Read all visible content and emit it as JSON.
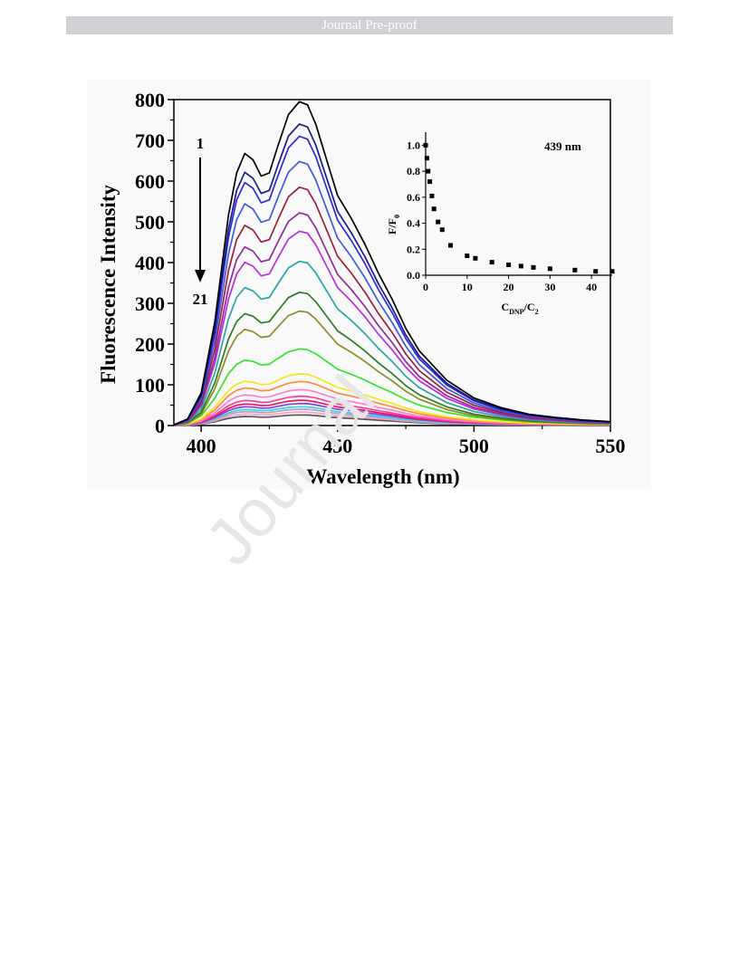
{
  "header": {
    "text": "Journal Pre-proof"
  },
  "watermark": {
    "text": "Journal"
  },
  "chart_data": [
    {
      "type": "line",
      "title": "",
      "xlabel": "Wavelength (nm)",
      "ylabel": "Fluorescence Intensity",
      "xlim": [
        390,
        550
      ],
      "ylim": [
        0,
        800
      ],
      "xticks": [
        400,
        450,
        500,
        550
      ],
      "yticks": [
        0,
        100,
        200,
        300,
        400,
        500,
        600,
        700,
        800
      ],
      "grid": false,
      "annotation": {
        "start_label": "1",
        "end_label": "21",
        "arrow": "down"
      },
      "shape_x": [
        390,
        395,
        400,
        405,
        410,
        413,
        416,
        419,
        422,
        425,
        428,
        432,
        436,
        439,
        442,
        446,
        450,
        455,
        460,
        465,
        470,
        475,
        480,
        490,
        500,
        510,
        520,
        530,
        540,
        550
      ],
      "series": [
        {
          "peak": 795,
          "color": "#000000"
        },
        {
          "peak": 740,
          "color": "#1a1a8c"
        },
        {
          "peak": 710,
          "color": "#2a2ad6"
        },
        {
          "peak": 648,
          "color": "#3d5ae0"
        },
        {
          "peak": 585,
          "color": "#9e1d3a"
        },
        {
          "peak": 522,
          "color": "#8e2a9a"
        },
        {
          "peak": 477,
          "color": "#b52fe0"
        },
        {
          "peak": 403,
          "color": "#2aa5a5"
        },
        {
          "peak": 327,
          "color": "#2a7d25"
        },
        {
          "peak": 281,
          "color": "#8e8a25"
        },
        {
          "peak": 188,
          "color": "#33e62a"
        },
        {
          "peak": 127,
          "color": "#f2e81a"
        },
        {
          "peak": 108,
          "color": "#ff8a3a"
        },
        {
          "peak": 88,
          "color": "#ff7fd4"
        },
        {
          "peak": 72,
          "color": "#ff3aa0"
        },
        {
          "peak": 62,
          "color": "#e61a5a"
        },
        {
          "peak": 54,
          "color": "#8c3ae6"
        },
        {
          "peak": 46,
          "color": "#3ad0f2"
        },
        {
          "peak": 40,
          "color": "#aaaaaa"
        },
        {
          "peak": 33,
          "color": "#ff9ad0"
        },
        {
          "peak": 26,
          "color": "#555555"
        }
      ]
    },
    {
      "type": "scatter",
      "title": "439 nm",
      "xlabel_main": "C",
      "xlabel_sub": "DNP",
      "xlabel_mid": "/C",
      "xlabel_sub2": "2",
      "ylabel_main": "F/F",
      "ylabel_sub": "0",
      "xlim": [
        0,
        45
      ],
      "ylim": [
        0,
        1.1
      ],
      "xticks": [
        0,
        10,
        20,
        30,
        40
      ],
      "yticks": [
        "0.0",
        "0.2",
        "0.4",
        "0.6",
        "0.8",
        "1.0"
      ],
      "x": [
        0,
        0.3,
        0.6,
        1,
        1.5,
        2,
        3,
        4,
        6,
        10,
        12,
        16,
        20,
        23,
        26,
        30,
        36,
        41,
        45
      ],
      "y": [
        1.0,
        0.9,
        0.8,
        0.72,
        0.61,
        0.51,
        0.41,
        0.35,
        0.23,
        0.15,
        0.13,
        0.1,
        0.08,
        0.07,
        0.06,
        0.05,
        0.04,
        0.03,
        0.03
      ]
    }
  ]
}
